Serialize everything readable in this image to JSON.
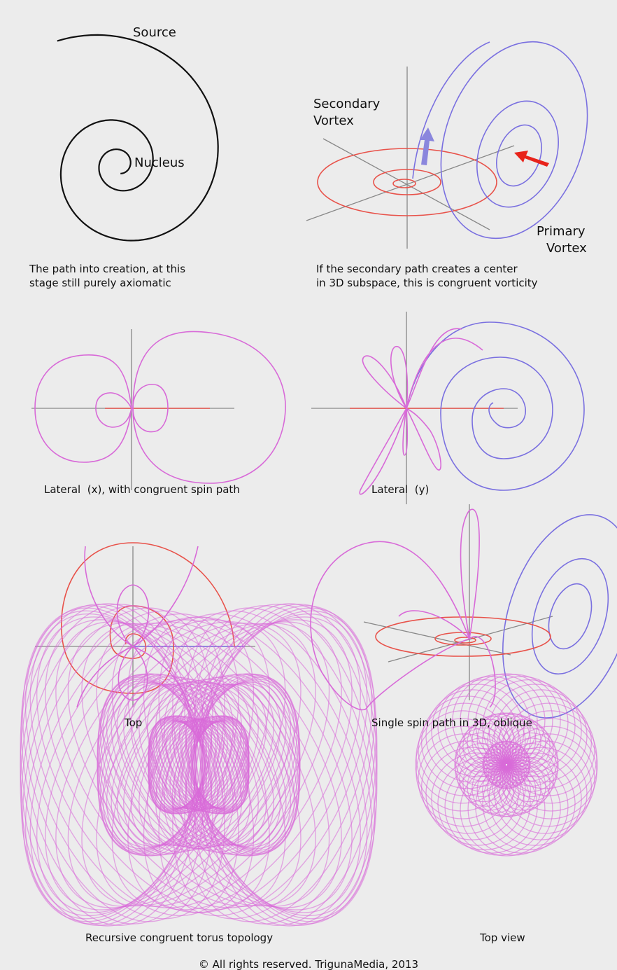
{
  "spiral": {
    "labels": [
      "Source",
      "Nucleus"
    ],
    "caption": [
      "The path into creation, at this",
      "stage still purely axiomatic"
    ]
  },
  "vortex": {
    "secondary": [
      "Secondary",
      "Vortex"
    ],
    "primary": [
      "Primary",
      "Vortex"
    ],
    "caption": [
      "If the secondary path creates a center",
      "in 3D subspace, this is congruent vorticity"
    ]
  },
  "lateral_x": {
    "caption": "Lateral  (x), with congruent spin path"
  },
  "lateral_y": {
    "caption": "Lateral  (y)"
  },
  "top": {
    "caption": "Top"
  },
  "oblique": {
    "caption": "Single spin path in 3D, oblique"
  },
  "torus": {
    "caption": "Recursive congruent torus topology"
  },
  "top_view": {
    "caption": "Top view"
  },
  "footer": "© All rights reserved. TrigunaMedia, 2013"
}
